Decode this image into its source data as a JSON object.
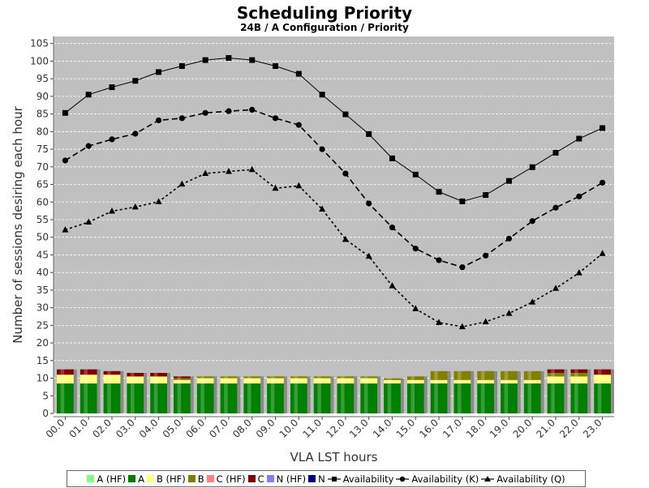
{
  "chart_data": {
    "type": "bar+line",
    "title": "Scheduling Priority",
    "subtitle": "24B / A Configuration /  Priority",
    "xlabel": "VLA LST hours",
    "ylabel": "Number of sessions desiring each hour",
    "ylim": [
      0,
      107
    ],
    "yticks": [
      0,
      5,
      10,
      15,
      20,
      25,
      30,
      35,
      40,
      45,
      50,
      55,
      60,
      65,
      70,
      75,
      80,
      85,
      90,
      95,
      100,
      105
    ],
    "grid": true,
    "legend_position": "bottom",
    "categories": [
      "00.0",
      "01.0",
      "02.0",
      "03.0",
      "04.0",
      "05.0",
      "06.0",
      "07.0",
      "08.0",
      "09.0",
      "10.0",
      "11.0",
      "12.0",
      "13.0",
      "14.0",
      "15.0",
      "16.0",
      "17.0",
      "18.0",
      "19.0",
      "20.0",
      "21.0",
      "22.0",
      "23.0"
    ],
    "bar_series": [
      {
        "name": "A (HF)",
        "color": "#80ff80",
        "values": [
          0,
          0,
          0,
          0,
          0,
          0,
          0,
          0,
          0,
          0,
          0,
          0,
          0,
          0,
          0,
          0,
          0,
          0,
          0,
          0,
          0,
          0,
          0,
          0
        ]
      },
      {
        "name": "A",
        "color": "#008000",
        "values": [
          8.5,
          8.5,
          8.5,
          8.5,
          8.5,
          8.5,
          8.5,
          8.5,
          8.5,
          8.5,
          8.5,
          8.5,
          8.5,
          8.5,
          8.5,
          8.5,
          8.5,
          8.5,
          8.5,
          8.5,
          8.5,
          8.5,
          8.5,
          8.5
        ]
      },
      {
        "name": "B (HF)",
        "color": "#ffff80",
        "values": [
          2.5,
          2.5,
          2.5,
          2,
          2,
          1,
          1.5,
          1.5,
          1.5,
          1.5,
          1.5,
          1.5,
          1.5,
          1.5,
          1,
          1,
          1,
          1,
          1,
          1,
          1,
          2,
          2,
          2.5
        ]
      },
      {
        "name": "B",
        "color": "#808000",
        "values": [
          0,
          0,
          0,
          0,
          0,
          0.5,
          0.5,
          0.5,
          0.5,
          0.5,
          0.5,
          0.5,
          0.5,
          0.5,
          0.5,
          1,
          2.5,
          2.5,
          2.5,
          2.5,
          2.5,
          1,
          1,
          0
        ]
      },
      {
        "name": "C (HF)",
        "color": "#ff8080",
        "values": [
          0,
          0,
          0,
          0,
          0,
          0,
          0,
          0,
          0,
          0,
          0,
          0,
          0,
          0,
          0,
          0,
          0,
          0,
          0,
          0,
          0,
          0,
          0,
          0
        ]
      },
      {
        "name": "C",
        "color": "#800000",
        "values": [
          1.5,
          1.5,
          1,
          1,
          1,
          0.5,
          0,
          0,
          0,
          0,
          0,
          0,
          0,
          0,
          0,
          0,
          0,
          0,
          0,
          0,
          0,
          1,
          1,
          1.5
        ]
      },
      {
        "name": "N (HF)",
        "color": "#8080ff",
        "values": [
          0,
          0,
          0,
          0,
          0,
          0,
          0,
          0,
          0,
          0,
          0,
          0,
          0,
          0,
          0,
          0,
          0,
          0,
          0,
          0,
          0,
          0,
          0,
          0
        ]
      },
      {
        "name": "N",
        "color": "#000080",
        "values": [
          0,
          0,
          0,
          0,
          0,
          0,
          0,
          0,
          0,
          0,
          0,
          0,
          0,
          0,
          0,
          0,
          0,
          0,
          0,
          0,
          0,
          0,
          0,
          0
        ]
      }
    ],
    "line_series": [
      {
        "name": "Availability",
        "marker": "square",
        "dash": "solid",
        "values": [
          85.3,
          90.5,
          92.6,
          94.4,
          96.9,
          98.6,
          100.3,
          100.9,
          100.3,
          98.6,
          96.4,
          90.5,
          84.9,
          79.3,
          72.4,
          67.8,
          62.9,
          60.2,
          62.0,
          66.0,
          69.9,
          74.0,
          78.0,
          81.0
        ]
      },
      {
        "name": "Availability (K)",
        "marker": "circle",
        "dash": "dashed",
        "values": [
          71.8,
          75.9,
          77.8,
          79.4,
          83.2,
          83.8,
          85.3,
          85.8,
          86.2,
          83.8,
          81.9,
          75.0,
          68.1,
          59.6,
          52.8,
          46.8,
          43.5,
          41.5,
          44.8,
          49.6,
          54.6,
          58.4,
          61.6,
          65.5
        ]
      },
      {
        "name": "Availability (Q)",
        "marker": "triangle",
        "dash": "dotted",
        "values": [
          52.1,
          54.3,
          57.4,
          58.6,
          60.1,
          65.1,
          68.1,
          68.7,
          69.2,
          63.9,
          64.6,
          58.0,
          49.4,
          44.6,
          36.2,
          29.7,
          25.8,
          24.6,
          26.0,
          28.4,
          31.6,
          35.5,
          39.9,
          45.4
        ]
      }
    ]
  },
  "legend": {
    "items": [
      {
        "label": "A (HF)",
        "kind": "swatch",
        "color": "#80ff80"
      },
      {
        "label": "A",
        "kind": "swatch",
        "color": "#008000"
      },
      {
        "label": "B (HF)",
        "kind": "swatch",
        "color": "#ffff80"
      },
      {
        "label": "B",
        "kind": "swatch",
        "color": "#808000"
      },
      {
        "label": "C (HF)",
        "kind": "swatch",
        "color": "#ff8080"
      },
      {
        "label": "C",
        "kind": "swatch",
        "color": "#800000"
      },
      {
        "label": "N (HF)",
        "kind": "swatch",
        "color": "#8080ff"
      },
      {
        "label": "N",
        "kind": "swatch",
        "color": "#000080"
      },
      {
        "label": "Availability",
        "kind": "square"
      },
      {
        "label": "Availability (K)",
        "kind": "circle"
      },
      {
        "label": "Availability (Q)",
        "kind": "triangle"
      }
    ]
  },
  "colors": {
    "plot_background": "#c0c0c0",
    "gridline": "#ffffff",
    "line": "#000000"
  }
}
